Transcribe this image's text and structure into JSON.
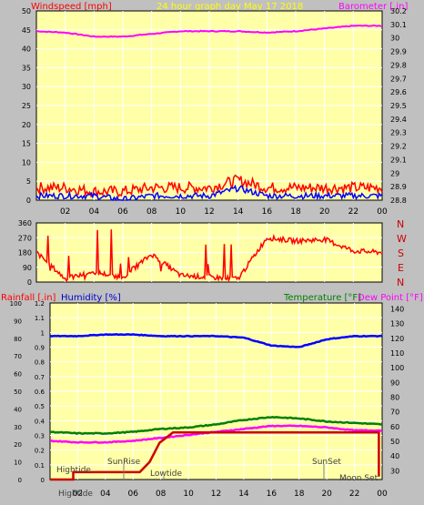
{
  "title": "24 hour graph day   May 17 2018",
  "colors": {
    "background": "#c0c0c0",
    "plot_bg": "#ffffa8",
    "grid": "#ffffff",
    "red": "#ff0000",
    "darkred": "#cc0000",
    "blue": "#0000ff",
    "green": "#008000",
    "magenta": "#ff00ff",
    "yellow": "#ffff00",
    "dark_yellow": "#cccc00",
    "navy": "#0000cc",
    "gray_text": "#404040"
  },
  "top": {
    "left_label": "Windspeed [mph]",
    "right_label": "Barometer [.in]",
    "x_ticks": [
      "02",
      "04",
      "06",
      "08",
      "10",
      "12",
      "14",
      "16",
      "18",
      "20",
      "22",
      "00"
    ],
    "y_left_ticks": [
      "0",
      "5",
      "10",
      "15",
      "20",
      "25",
      "30",
      "35",
      "40",
      "45",
      "50"
    ],
    "y_right_ticks": [
      "28.8",
      "28.9",
      "29",
      "29.1",
      "29.2",
      "29.3",
      "29.4",
      "29.5",
      "29.6",
      "29.7",
      "29.8",
      "29.9",
      "30",
      "30.1",
      "30.2"
    ]
  },
  "middle": {
    "y_ticks": [
      "0",
      "90",
      "180",
      "270",
      "360"
    ],
    "compass": [
      "N",
      "W",
      "S",
      "E",
      "N"
    ]
  },
  "bottom": {
    "rain_label": "Rainfall [.in]",
    "hum_label": "Humidity [%]",
    "temp_label": "Temperature [°F]",
    "dew_label": "Dew Point [°F]",
    "hum_ticks": [
      "0",
      "10",
      "20",
      "30",
      "40",
      "50",
      "60",
      "70",
      "80",
      "90",
      "100"
    ],
    "rain_ticks": [
      "0",
      "0.1",
      "0.2",
      "0.3",
      "0.4",
      "0.5",
      "0.6",
      "0.7",
      "0.8",
      "0.9",
      "1",
      "1.1",
      "1.2"
    ],
    "temp_ticks": [
      "30",
      "40",
      "50",
      "60",
      "70",
      "80",
      "90",
      "100",
      "110",
      "120",
      "130",
      "140"
    ],
    "x_ticks": [
      "02",
      "04",
      "06",
      "08",
      "10",
      "12",
      "14",
      "16",
      "18",
      "20",
      "22",
      "00"
    ],
    "annotations": {
      "hightide": "Hightide",
      "sunrise": "SunRise",
      "lowtide": "Lowtide",
      "sunset": "SunSet",
      "moonset": "Moon Set",
      "bottom_left": "Hightide"
    }
  },
  "chart_data": [
    {
      "type": "line",
      "title": "24 hour graph day   May 17 2018",
      "xlabel": "",
      "ylabel": "Windspeed [mph]",
      "y2label": "Barometer [.in]",
      "ylim": [
        0,
        50
      ],
      "y2lim": [
        28.8,
        30.2
      ],
      "x": [
        "00",
        "02",
        "04",
        "06",
        "08",
        "10",
        "12",
        "14",
        "16",
        "18",
        "20",
        "22",
        "00"
      ],
      "series": [
        {
          "name": "Barometer [.in]",
          "color": "#ff00ff",
          "axis": "right",
          "values": [
            30.05,
            30.04,
            30.01,
            30.01,
            30.03,
            30.05,
            30.05,
            30.05,
            30.04,
            30.05,
            30.07,
            30.09,
            30.09
          ]
        },
        {
          "name": "Windspeed [mph]",
          "color": "#0000ff",
          "axis": "left",
          "values": [
            1,
            1,
            1,
            0,
            1,
            1,
            1,
            3,
            1,
            1,
            1,
            1,
            1
          ]
        },
        {
          "name": "Wind gust",
          "color": "#ff0000",
          "axis": "left",
          "values": [
            3,
            3,
            2,
            2,
            3,
            3,
            3,
            5,
            3,
            3,
            3,
            3,
            3
          ]
        }
      ]
    },
    {
      "type": "line",
      "ylabel": "",
      "ylim": [
        0,
        360
      ],
      "x": [
        "00",
        "02",
        "04",
        "06",
        "08",
        "10",
        "12",
        "14",
        "16",
        "18",
        "20",
        "22",
        "00"
      ],
      "series": [
        {
          "name": "Wind direction",
          "color": "#ff0000",
          "values": [
            180,
            20,
            60,
            30,
            170,
            40,
            30,
            20,
            270,
            250,
            260,
            190,
            180
          ]
        }
      ]
    },
    {
      "type": "line",
      "ylim": [
        0,
        100
      ],
      "y_rain_lim": [
        0,
        1.2
      ],
      "y_temp_lim": [
        30,
        140
      ],
      "x": [
        "00",
        "02",
        "04",
        "06",
        "08",
        "10",
        "12",
        "14",
        "16",
        "18",
        "20",
        "22",
        "00"
      ],
      "series": [
        {
          "name": "Humidity [%]",
          "color": "#0000ff",
          "axis": "humidity",
          "values": [
            91,
            91,
            92,
            92,
            91,
            91,
            91,
            90,
            85,
            84,
            89,
            91,
            91
          ]
        },
        {
          "name": "Rainfall [.in]",
          "color": "#cc0000",
          "axis": "rain",
          "values": [
            0,
            0.05,
            0.05,
            0.05,
            0.32,
            0.32,
            0.32,
            0.32,
            0.32,
            0.32,
            0.32,
            0.32,
            0.02
          ]
        },
        {
          "name": "Temperature [°F]",
          "color": "#008000",
          "axis": "temp",
          "values": [
            56,
            55,
            55,
            56,
            58,
            59,
            61,
            64,
            66,
            65,
            63,
            62,
            61
          ]
        },
        {
          "name": "Dew Point [°F]",
          "color": "#ff00ff",
          "axis": "temp",
          "values": [
            50,
            49,
            49,
            50,
            52,
            54,
            56,
            58,
            60,
            60,
            59,
            57,
            57
          ]
        }
      ]
    }
  ]
}
